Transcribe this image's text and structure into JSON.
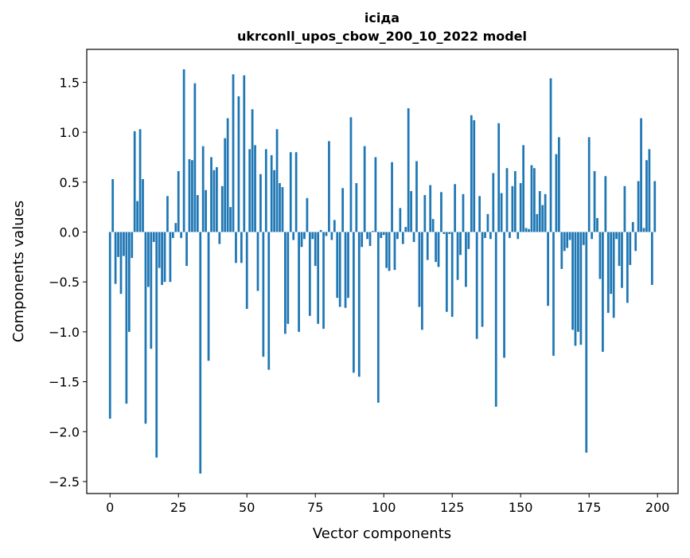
{
  "chart_data": {
    "type": "bar",
    "title": "ісіда",
    "subtitle": "ukrconll_upos_cbow_200_10_2022 model",
    "xlabel": "Vector components",
    "ylabel": "Components values",
    "xlim": [
      -8.5,
      207.5
    ],
    "ylim": [
      -2.62,
      1.83
    ],
    "xticks": [
      0,
      25,
      50,
      75,
      100,
      125,
      150,
      175,
      200
    ],
    "yticks": [
      1.5,
      1.0,
      0.5,
      0.0,
      -0.5,
      -1.0,
      -1.5,
      -2.0,
      -2.5
    ],
    "ytick_labels": [
      "1.5",
      "1.0",
      "0.5",
      "0.0",
      "−0.5",
      "−1.0",
      "−1.5",
      "−2.0",
      "−2.5"
    ],
    "grid": false,
    "legend": "none",
    "bar_color": "#1f77b4",
    "x": [
      0,
      1,
      2,
      3,
      4,
      5,
      6,
      7,
      8,
      9,
      10,
      11,
      12,
      13,
      14,
      15,
      16,
      17,
      18,
      19,
      20,
      21,
      22,
      23,
      24,
      25,
      26,
      27,
      28,
      29,
      30,
      31,
      32,
      33,
      34,
      35,
      36,
      37,
      38,
      39,
      40,
      41,
      42,
      43,
      44,
      45,
      46,
      47,
      48,
      49,
      50,
      51,
      52,
      53,
      54,
      55,
      56,
      57,
      58,
      59,
      60,
      61,
      62,
      63,
      64,
      65,
      66,
      67,
      68,
      69,
      70,
      71,
      72,
      73,
      74,
      75,
      76,
      77,
      78,
      79,
      80,
      81,
      82,
      83,
      84,
      85,
      86,
      87,
      88,
      89,
      90,
      91,
      92,
      93,
      94,
      95,
      96,
      97,
      98,
      99,
      100,
      101,
      102,
      103,
      104,
      105,
      106,
      107,
      108,
      109,
      110,
      111,
      112,
      113,
      114,
      115,
      116,
      117,
      118,
      119,
      120,
      121,
      122,
      123,
      124,
      125,
      126,
      127,
      128,
      129,
      130,
      131,
      132,
      133,
      134,
      135,
      136,
      137,
      138,
      139,
      140,
      141,
      142,
      143,
      144,
      145,
      146,
      147,
      148,
      149,
      150,
      151,
      152,
      153,
      154,
      155,
      156,
      157,
      158,
      159,
      160,
      161,
      162,
      163,
      164,
      165,
      166,
      167,
      168,
      169,
      170,
      171,
      172,
      173,
      174,
      175,
      176,
      177,
      178,
      179,
      180,
      181,
      182,
      183,
      184,
      185,
      186,
      187,
      188,
      189,
      190,
      191,
      192,
      193,
      194,
      195,
      196,
      197,
      198,
      199
    ],
    "values": [
      -1.87,
      0.53,
      -0.52,
      -0.25,
      -0.62,
      -0.24,
      -1.72,
      -1.0,
      -0.26,
      1.01,
      0.31,
      1.03,
      0.53,
      -1.92,
      -0.55,
      -1.17,
      -0.1,
      -2.26,
      -0.36,
      -0.53,
      -0.5,
      0.36,
      -0.5,
      -0.06,
      0.09,
      0.61,
      -0.06,
      1.63,
      -0.34,
      0.73,
      0.72,
      1.49,
      0.37,
      -2.42,
      0.86,
      0.42,
      -1.29,
      0.75,
      0.62,
      0.65,
      -0.12,
      0.46,
      0.94,
      1.14,
      0.25,
      1.58,
      -0.31,
      1.36,
      -0.31,
      1.57,
      -0.77,
      0.83,
      1.23,
      0.87,
      -0.59,
      0.58,
      -1.25,
      0.83,
      -1.38,
      0.77,
      0.62,
      1.03,
      0.49,
      0.45,
      -1.02,
      -0.92,
      0.8,
      -0.08,
      0.8,
      -1.0,
      -0.15,
      -0.07,
      0.34,
      -0.84,
      -0.07,
      -0.34,
      -0.92,
      0.02,
      -0.97,
      -0.04,
      0.91,
      -0.08,
      0.12,
      -0.66,
      -0.75,
      0.44,
      -0.76,
      -0.66,
      1.15,
      -1.41,
      0.49,
      -1.45,
      -0.15,
      0.86,
      -0.07,
      -0.14,
      0.01,
      0.75,
      -1.71,
      -0.06,
      -0.03,
      -0.36,
      -0.39,
      0.7,
      -0.38,
      -0.07,
      0.24,
      -0.12,
      0.05,
      1.24,
      0.41,
      -0.1,
      0.71,
      -0.75,
      -0.98,
      0.37,
      -0.28,
      0.47,
      0.13,
      -0.3,
      -0.35,
      0.4,
      -0.02,
      -0.8,
      -0.02,
      -0.85,
      0.48,
      -0.48,
      -0.23,
      0.38,
      -0.55,
      -0.17,
      1.17,
      1.12,
      -1.07,
      0.36,
      -0.95,
      -0.06,
      0.18,
      -0.07,
      0.59,
      -1.75,
      1.09,
      0.39,
      -1.26,
      0.64,
      -0.06,
      0.46,
      0.61,
      -0.07,
      0.49,
      0.87,
      0.04,
      0.03,
      0.67,
      0.64,
      0.18,
      0.41,
      0.27,
      0.38,
      -0.74,
      1.54,
      -1.24,
      0.78,
      0.95,
      -0.37,
      -0.19,
      -0.16,
      -0.08,
      -0.98,
      -1.14,
      -1.0,
      -1.13,
      -0.13,
      -2.21,
      0.95,
      -0.07,
      0.61,
      0.14,
      -0.47,
      -1.2,
      0.56,
      -0.81,
      -0.62,
      -0.86,
      -0.07,
      -0.34,
      -0.56,
      0.46,
      -0.71,
      -0.33,
      0.1,
      -0.19,
      0.51,
      1.14,
      0.04,
      0.72,
      0.83,
      -0.53,
      0.51
    ]
  }
}
